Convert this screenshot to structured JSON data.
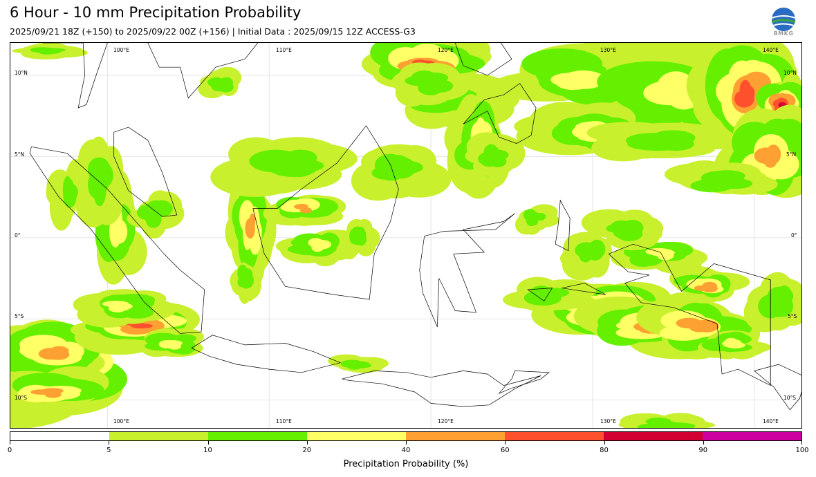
{
  "title": "6 Hour - 10 mm Precipitation Probability",
  "subtitle": "2025/09/21 18Z (+150) to 2025/09/22 00Z (+156) | Initial Data : 2025/09/15 12Z ACCESS-G3",
  "logo": {
    "icon": "bmkg-logo-icon",
    "text": "BMKG"
  },
  "map": {
    "lon_labels": [
      "100°E",
      "110°E",
      "120°E",
      "130°E",
      "140°E"
    ],
    "lat_labels": [
      "10°N",
      "5°N",
      "0°",
      "5°S",
      "10°S"
    ],
    "lon_range": [
      94,
      143
    ],
    "lat_range": [
      -11.8,
      12
    ]
  },
  "colorbar": {
    "label": "Precipitation Probability (%)",
    "ticks": [
      "0",
      "5",
      "10",
      "20",
      "40",
      "60",
      "80",
      "90",
      "100"
    ],
    "colors": [
      "#ffffff",
      "#c8f02d",
      "#64f000",
      "#ffff66",
      "#ffa032",
      "#ff502d",
      "#d20032",
      "#cd00a0"
    ]
  }
}
